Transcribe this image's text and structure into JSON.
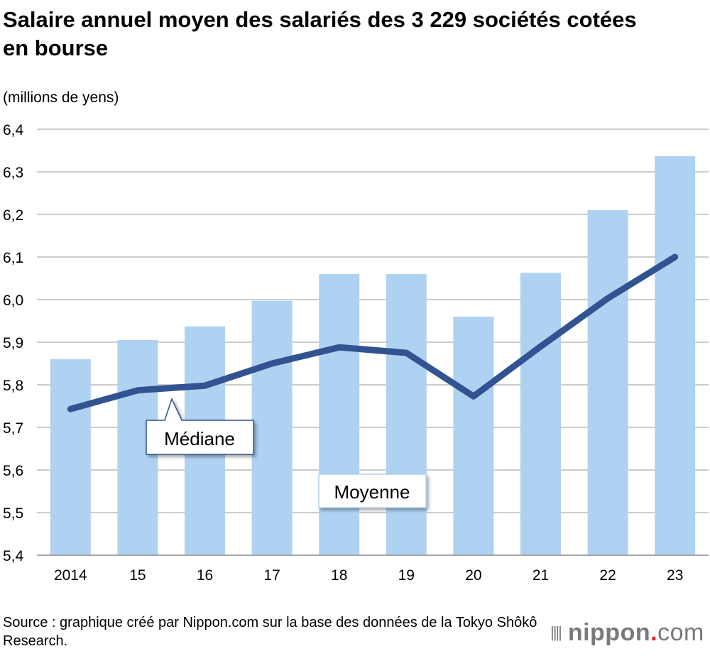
{
  "title": "Salaire annuel moyen des salariés des 3 229 sociétés cotées en bourse",
  "unit_label": "(millions de yens)",
  "source": "Source : graphique créé par Nippon.com sur la base des données de la Tokyo Shôkô Research.",
  "logo": {
    "name": "nippon",
    "dot": ".",
    "suffix": "com"
  },
  "chart_data": {
    "type": "bar+line",
    "categories": [
      "2014",
      "15",
      "16",
      "17",
      "18",
      "19",
      "20",
      "21",
      "22",
      "23"
    ],
    "series": [
      {
        "name": "Moyenne",
        "type": "bar",
        "color": "#b0d2f2",
        "values": [
          5.86,
          5.905,
          5.937,
          5.997,
          6.06,
          6.06,
          5.96,
          6.063,
          6.21,
          6.337
        ]
      },
      {
        "name": "Médiane",
        "type": "line",
        "color": "#325391",
        "values": [
          5.743,
          5.787,
          5.798,
          5.85,
          5.888,
          5.875,
          5.773,
          5.89,
          6.003,
          6.1
        ]
      }
    ],
    "ylim": [
      5.4,
      6.4
    ],
    "yticks": [
      "5,4",
      "5,5",
      "5,6",
      "5,7",
      "5,8",
      "5,9",
      "6,0",
      "6,1",
      "6,2",
      "6,3",
      "6,4"
    ],
    "grid": true,
    "legend": "inline callouts"
  }
}
